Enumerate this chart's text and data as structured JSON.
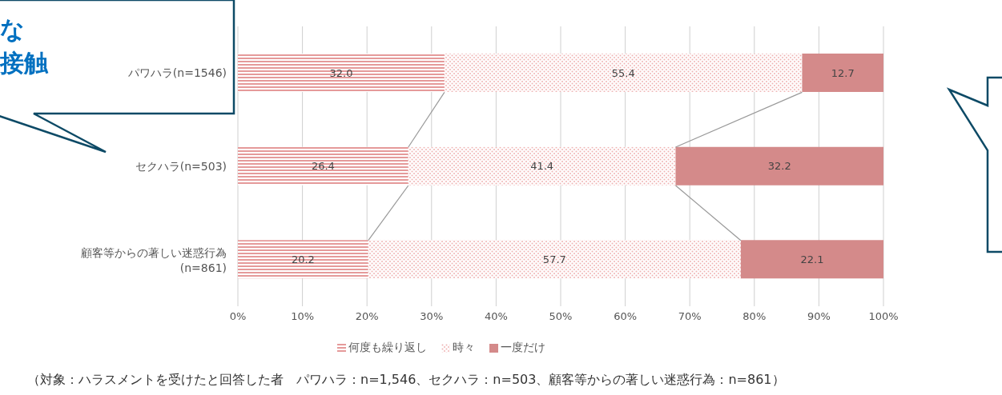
{
  "chart_data": {
    "type": "bar",
    "orientation": "horizontal",
    "stacked": true,
    "categories": [
      "パワハラ(n=1546)",
      "セクハラ(n=503)",
      "顧客等からの著しい迷惑行為\n(n=861)"
    ],
    "series": [
      {
        "name": "何度も繰り返し",
        "color": "#e59a9a",
        "values": [
          32.0,
          26.4,
          20.2
        ],
        "value_labels": [
          "32.0",
          "26.4",
          "20.2"
        ]
      },
      {
        "name": "時々",
        "color": "#f0b4b4",
        "values": [
          55.4,
          41.4,
          57.7
        ],
        "value_labels": [
          "55.4",
          "41.4",
          "57.7"
        ]
      },
      {
        "name": "一度だけ",
        "color": "#d48a8a",
        "values": [
          12.7,
          32.2,
          22.1
        ],
        "value_labels": [
          "12.7",
          "32.2",
          "22.1"
        ]
      }
    ],
    "xlim": [
      0,
      100
    ],
    "xticks": [
      {
        "value": 0,
        "label": "0%"
      },
      {
        "value": 10,
        "label": "10%"
      },
      {
        "value": 20,
        "label": "20%"
      },
      {
        "value": 30,
        "label": "30%"
      },
      {
        "value": 40,
        "label": "40%"
      },
      {
        "value": 50,
        "label": "50%"
      },
      {
        "value": 60,
        "label": "60%"
      },
      {
        "value": 70,
        "label": "70%"
      },
      {
        "value": 80,
        "label": "80%"
      },
      {
        "value": 90,
        "label": "90%"
      },
      {
        "value": 100,
        "label": "100%"
      }
    ],
    "grid": "x",
    "legend": "bottom",
    "annotations": [
      "な",
      "接触",
      "（対象：ハラスメントを受けたと回答した者　パワハラ：n=1,546、セクハラ：n=503、顧客等からの著しい迷惑行為：n=861）"
    ]
  }
}
